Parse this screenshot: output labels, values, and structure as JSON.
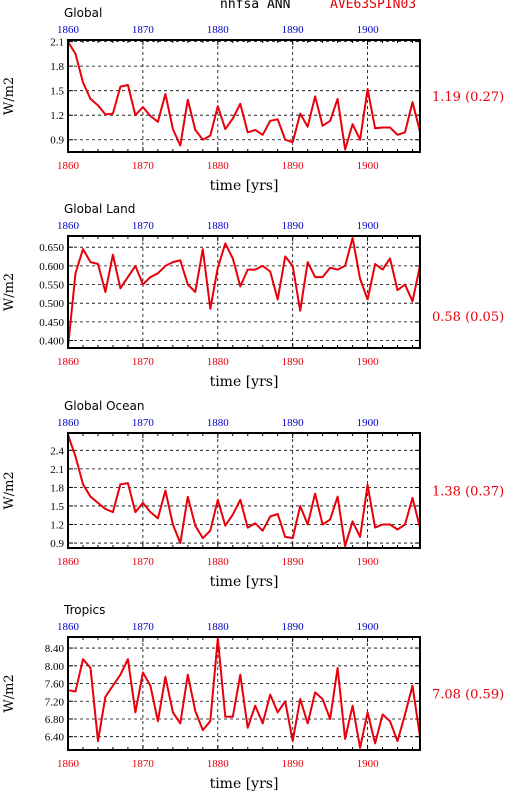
{
  "header": {
    "variable": "nhfsa ANN",
    "case": "AVE63SPIN03"
  },
  "colors": {
    "series": "#e8000b",
    "top_ticks": "#0000c8",
    "bottom_ticks": "#e8000b",
    "stat_text": "#e8000b"
  },
  "chart_data": [
    {
      "type": "line",
      "title": "Global",
      "xlabel": "time [yrs]",
      "ylabel": "W/m2",
      "xlim": [
        1860,
        1907
      ],
      "ylim": [
        0.75,
        2.12
      ],
      "yticks": [
        "0.9",
        "1.2",
        "1.5",
        "1.8",
        "2.1"
      ],
      "xticks": [
        "1860",
        "1870",
        "1880",
        "1890",
        "1900"
      ],
      "stat": "1.19 (0.27)",
      "grid": true,
      "x": [
        1860,
        1861,
        1862,
        1863,
        1864,
        1865,
        1866,
        1867,
        1868,
        1869,
        1870,
        1871,
        1872,
        1873,
        1874,
        1875,
        1876,
        1877,
        1878,
        1879,
        1880,
        1881,
        1882,
        1883,
        1884,
        1885,
        1886,
        1887,
        1888,
        1889,
        1890,
        1891,
        1892,
        1893,
        1894,
        1895,
        1896,
        1897,
        1898,
        1899,
        1900,
        1901,
        1902,
        1903,
        1904,
        1905,
        1906,
        1907
      ],
      "values": [
        2.1,
        1.95,
        1.6,
        1.4,
        1.32,
        1.21,
        1.22,
        1.55,
        1.57,
        1.2,
        1.3,
        1.19,
        1.12,
        1.46,
        1.03,
        0.83,
        1.39,
        1.02,
        0.9,
        0.95,
        1.31,
        1.03,
        1.16,
        1.34,
        0.99,
        1.02,
        0.96,
        1.13,
        1.15,
        0.9,
        0.87,
        1.22,
        1.06,
        1.43,
        1.07,
        1.13,
        1.4,
        0.78,
        1.09,
        0.9,
        1.52,
        1.04,
        1.05,
        1.05,
        0.96,
        0.99,
        1.36,
        1.0
      ]
    },
    {
      "type": "line",
      "title": "Global Land",
      "xlabel": "time [yrs]",
      "ylabel": "W/m2",
      "xlim": [
        1860,
        1907
      ],
      "ylim": [
        0.38,
        0.68
      ],
      "yticks": [
        "0.400",
        "0.450",
        "0.500",
        "0.550",
        "0.600",
        "0.650"
      ],
      "xticks": [
        "1860",
        "1870",
        "1880",
        "1890",
        "1900"
      ],
      "stat": "0.58 (0.05)",
      "grid": true,
      "x": [
        1860,
        1861,
        1862,
        1863,
        1864,
        1865,
        1866,
        1867,
        1868,
        1869,
        1870,
        1871,
        1872,
        1873,
        1874,
        1875,
        1876,
        1877,
        1878,
        1879,
        1880,
        1881,
        1882,
        1883,
        1884,
        1885,
        1886,
        1887,
        1888,
        1889,
        1890,
        1891,
        1892,
        1893,
        1894,
        1895,
        1896,
        1897,
        1898,
        1899,
        1900,
        1901,
        1902,
        1903,
        1904,
        1905,
        1906,
        1907
      ],
      "values": [
        0.382,
        0.58,
        0.645,
        0.61,
        0.605,
        0.53,
        0.63,
        0.54,
        0.57,
        0.6,
        0.55,
        0.57,
        0.58,
        0.6,
        0.61,
        0.615,
        0.55,
        0.53,
        0.645,
        0.485,
        0.595,
        0.66,
        0.62,
        0.545,
        0.59,
        0.59,
        0.6,
        0.585,
        0.51,
        0.625,
        0.6,
        0.48,
        0.61,
        0.57,
        0.57,
        0.595,
        0.59,
        0.6,
        0.675,
        0.565,
        0.51,
        0.605,
        0.59,
        0.62,
        0.535,
        0.55,
        0.505,
        0.6
      ]
    },
    {
      "type": "line",
      "title": "Global Ocean",
      "xlabel": "time [yrs]",
      "ylabel": "W/m2",
      "xlim": [
        1860,
        1907
      ],
      "ylim": [
        0.82,
        2.68
      ],
      "yticks": [
        "0.9",
        "1.2",
        "1.5",
        "1.8",
        "2.1",
        "2.4"
      ],
      "xticks": [
        "1860",
        "1870",
        "1880",
        "1890",
        "1900"
      ],
      "stat": "1.38 (0.37)",
      "grid": true,
      "x": [
        1860,
        1861,
        1862,
        1863,
        1864,
        1865,
        1866,
        1867,
        1868,
        1869,
        1870,
        1871,
        1872,
        1873,
        1874,
        1875,
        1876,
        1877,
        1878,
        1879,
        1880,
        1881,
        1882,
        1883,
        1884,
        1885,
        1886,
        1887,
        1888,
        1889,
        1890,
        1891,
        1892,
        1893,
        1894,
        1895,
        1896,
        1897,
        1898,
        1899,
        1900,
        1901,
        1902,
        1903,
        1904,
        1905,
        1906,
        1907
      ],
      "values": [
        2.65,
        2.3,
        1.85,
        1.65,
        1.55,
        1.45,
        1.4,
        1.85,
        1.87,
        1.4,
        1.55,
        1.4,
        1.3,
        1.75,
        1.2,
        0.9,
        1.65,
        1.18,
        0.98,
        1.1,
        1.6,
        1.18,
        1.36,
        1.6,
        1.15,
        1.22,
        1.1,
        1.33,
        1.37,
        1.0,
        0.98,
        1.5,
        1.2,
        1.7,
        1.2,
        1.28,
        1.65,
        0.85,
        1.25,
        1.0,
        1.84,
        1.15,
        1.2,
        1.2,
        1.12,
        1.2,
        1.63,
        1.15
      ]
    },
    {
      "type": "line",
      "title": "Tropics",
      "xlabel": "time [yrs]",
      "ylabel": "W/m2",
      "xlim": [
        1860,
        1907
      ],
      "ylim": [
        6.1,
        8.65
      ],
      "yticks": [
        "6.40",
        "6.80",
        "7.20",
        "7.60",
        "8.00",
        "8.40"
      ],
      "xticks": [
        "1860",
        "1870",
        "1880",
        "1890",
        "1900"
      ],
      "stat": "7.08 (0.59)",
      "grid": true,
      "x": [
        1860,
        1861,
        1862,
        1863,
        1864,
        1865,
        1866,
        1867,
        1868,
        1869,
        1870,
        1871,
        1872,
        1873,
        1874,
        1875,
        1876,
        1877,
        1878,
        1879,
        1880,
        1881,
        1882,
        1883,
        1884,
        1885,
        1886,
        1887,
        1888,
        1889,
        1890,
        1891,
        1892,
        1893,
        1894,
        1895,
        1896,
        1897,
        1898,
        1899,
        1900,
        1901,
        1902,
        1903,
        1904,
        1905,
        1906,
        1907
      ],
      "values": [
        7.45,
        7.42,
        8.15,
        7.95,
        6.3,
        7.3,
        7.55,
        7.8,
        8.15,
        6.95,
        7.85,
        7.55,
        6.75,
        7.75,
        6.95,
        6.7,
        7.8,
        6.98,
        6.55,
        6.75,
        8.62,
        6.85,
        6.85,
        7.8,
        6.6,
        7.1,
        6.7,
        7.35,
        6.95,
        7.2,
        6.3,
        7.25,
        6.7,
        7.4,
        7.25,
        6.8,
        7.95,
        6.35,
        7.1,
        6.15,
        6.95,
        6.25,
        6.9,
        6.75,
        6.3,
        6.9,
        7.55,
        6.4
      ]
    }
  ]
}
